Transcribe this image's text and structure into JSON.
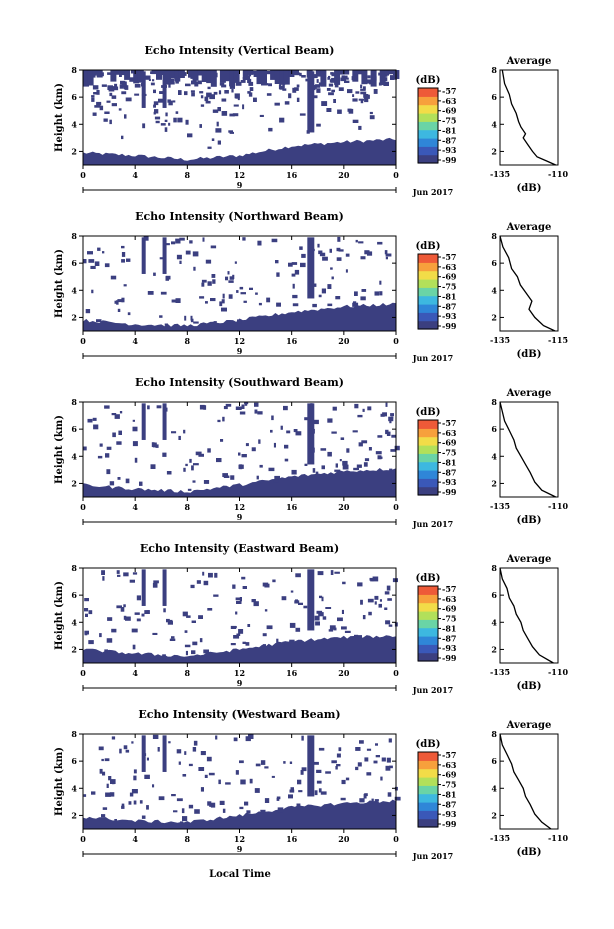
{
  "figure": {
    "xlabel": "Local Time",
    "date_label": "Jun 2017",
    "day_label": "9",
    "colorbar_unit": "(dB)",
    "colorbar_ticks": [
      "-57",
      "-63",
      "-69",
      "-75",
      "-81",
      "-87",
      "-93",
      "-99"
    ],
    "avg_title": "Average",
    "avg_xlabel": "(dB)"
  },
  "colors": {
    "noise_fill": "#3b3f80",
    "colorbar": [
      "#3b3f80",
      "#3a58b8",
      "#2f86d8",
      "#3db8e0",
      "#6ad4a6",
      "#b2e05a",
      "#f2dc48",
      "#f7a03c",
      "#ee5a38"
    ]
  },
  "chart_data": [
    {
      "type": "heatmap",
      "title": "Echo Intensity (Vertical Beam)",
      "ylabel": "Height (km)",
      "x_ticks": [
        "0",
        "4",
        "8",
        "12",
        "16",
        "20",
        "0"
      ],
      "y_ticks": [
        "2",
        "4",
        "6",
        "8"
      ],
      "xlim": [
        0,
        24
      ],
      "ylim": [
        1,
        8
      ],
      "noise_floor_km": [
        [
          0,
          1.9
        ],
        [
          4,
          1.7
        ],
        [
          8,
          1.4
        ],
        [
          12,
          1.7
        ],
        [
          16,
          2.4
        ],
        [
          20,
          2.7
        ],
        [
          24,
          2.9
        ]
      ],
      "avg_type": "line",
      "avg_xlim": [
        -135,
        -110
      ],
      "avg_x_ticks": [
        "-135",
        "-110"
      ],
      "avg_y_ticks": [
        "2",
        "4",
        "6",
        "8"
      ],
      "avg_profile": [
        [
          1.0,
          -111
        ],
        [
          1.3,
          -115
        ],
        [
          1.6,
          -119
        ],
        [
          2.0,
          -121
        ],
        [
          2.5,
          -123
        ],
        [
          3.0,
          -125
        ],
        [
          3.3,
          -124
        ],
        [
          3.8,
          -126
        ],
        [
          4.2,
          -127
        ],
        [
          4.8,
          -128
        ],
        [
          5.5,
          -130
        ],
        [
          6.2,
          -131
        ],
        [
          7.0,
          -133
        ],
        [
          8.0,
          -134
        ]
      ]
    },
    {
      "type": "heatmap",
      "title": "Echo Intensity (Northward Beam)",
      "ylabel": "Height (km)",
      "x_ticks": [
        "0",
        "4",
        "8",
        "12",
        "16",
        "20",
        "0"
      ],
      "y_ticks": [
        "2",
        "4",
        "6",
        "8"
      ],
      "xlim": [
        0,
        24
      ],
      "ylim": [
        1,
        8
      ],
      "noise_floor_km": [
        [
          0,
          1.8
        ],
        [
          4,
          1.5
        ],
        [
          8,
          1.4
        ],
        [
          12,
          1.8
        ],
        [
          16,
          2.4
        ],
        [
          20,
          2.8
        ],
        [
          24,
          3.0
        ]
      ],
      "avg_type": "line",
      "avg_xlim": [
        -135,
        -115
      ],
      "avg_x_ticks": [
        "-135",
        "-115"
      ],
      "avg_y_ticks": [
        "2",
        "4",
        "6",
        "8"
      ],
      "avg_profile": [
        [
          1.0,
          -116
        ],
        [
          1.4,
          -120
        ],
        [
          2.0,
          -123
        ],
        [
          2.6,
          -125
        ],
        [
          3.2,
          -124
        ],
        [
          3.8,
          -126
        ],
        [
          4.4,
          -128
        ],
        [
          5.0,
          -129
        ],
        [
          5.6,
          -131
        ],
        [
          6.4,
          -132
        ],
        [
          7.2,
          -134
        ],
        [
          8.0,
          -135
        ]
      ]
    },
    {
      "type": "heatmap",
      "title": "Echo Intensity (Southward Beam)",
      "ylabel": "Height (km)",
      "x_ticks": [
        "0",
        "4",
        "8",
        "12",
        "16",
        "20",
        "0"
      ],
      "y_ticks": [
        "2",
        "4",
        "6",
        "8"
      ],
      "xlim": [
        0,
        24
      ],
      "ylim": [
        1,
        8
      ],
      "noise_floor_km": [
        [
          0,
          1.9
        ],
        [
          4,
          1.6
        ],
        [
          8,
          1.4
        ],
        [
          12,
          1.9
        ],
        [
          16,
          2.5
        ],
        [
          20,
          2.9
        ],
        [
          24,
          3.1
        ]
      ],
      "avg_type": "line",
      "avg_xlim": [
        -135,
        -110
      ],
      "avg_x_ticks": [
        "-135",
        "-110"
      ],
      "avg_y_ticks": [
        "2",
        "4",
        "6",
        "8"
      ],
      "avg_profile": [
        [
          1.0,
          -111
        ],
        [
          1.5,
          -117
        ],
        [
          2.1,
          -120
        ],
        [
          2.8,
          -122
        ],
        [
          3.4,
          -124
        ],
        [
          4.0,
          -126
        ],
        [
          4.6,
          -128
        ],
        [
          5.2,
          -129
        ],
        [
          5.9,
          -131
        ],
        [
          6.6,
          -133
        ],
        [
          7.3,
          -134
        ],
        [
          8.0,
          -135
        ]
      ]
    },
    {
      "type": "heatmap",
      "title": "Echo Intensity (Eastward Beam)",
      "ylabel": "Height (km)",
      "x_ticks": [
        "0",
        "4",
        "8",
        "12",
        "16",
        "20",
        "0"
      ],
      "y_ticks": [
        "2",
        "4",
        "6",
        "8"
      ],
      "xlim": [
        0,
        24
      ],
      "ylim": [
        1,
        8
      ],
      "noise_floor_km": [
        [
          0,
          2.0
        ],
        [
          4,
          1.7
        ],
        [
          8,
          1.5
        ],
        [
          12,
          2.0
        ],
        [
          16,
          2.6
        ],
        [
          20,
          2.9
        ],
        [
          24,
          3.0
        ]
      ],
      "avg_type": "line",
      "avg_xlim": [
        -135,
        -110
      ],
      "avg_x_ticks": [
        "-135",
        "-110"
      ],
      "avg_y_ticks": [
        "2",
        "4",
        "6",
        "8"
      ],
      "avg_profile": [
        [
          1.0,
          -112
        ],
        [
          1.6,
          -118
        ],
        [
          2.2,
          -121
        ],
        [
          2.8,
          -123
        ],
        [
          3.4,
          -125
        ],
        [
          4.0,
          -126
        ],
        [
          4.6,
          -128
        ],
        [
          5.2,
          -129
        ],
        [
          5.8,
          -131
        ],
        [
          6.5,
          -132
        ],
        [
          7.2,
          -134
        ],
        [
          8.0,
          -135
        ]
      ]
    },
    {
      "type": "heatmap",
      "title": "Echo Intensity (Westward Beam)",
      "ylabel": "Height (km)",
      "x_ticks": [
        "0",
        "4",
        "8",
        "12",
        "16",
        "20",
        "0"
      ],
      "y_ticks": [
        "2",
        "4",
        "6",
        "8"
      ],
      "xlim": [
        0,
        24
      ],
      "ylim": [
        1,
        8
      ],
      "noise_floor_km": [
        [
          0,
          1.9
        ],
        [
          4,
          1.6
        ],
        [
          8,
          1.5
        ],
        [
          12,
          2.0
        ],
        [
          16,
          2.6
        ],
        [
          20,
          2.9
        ],
        [
          24,
          3.1
        ]
      ],
      "avg_type": "line",
      "avg_xlim": [
        -135,
        -110
      ],
      "avg_x_ticks": [
        "-135",
        "-110"
      ],
      "avg_y_ticks": [
        "2",
        "4",
        "6",
        "8"
      ],
      "avg_profile": [
        [
          1.0,
          -113
        ],
        [
          1.5,
          -117
        ],
        [
          2.1,
          -120
        ],
        [
          2.8,
          -122
        ],
        [
          3.4,
          -124
        ],
        [
          4.0,
          -125
        ],
        [
          4.6,
          -127
        ],
        [
          5.2,
          -129
        ],
        [
          5.8,
          -130
        ],
        [
          6.5,
          -132
        ],
        [
          7.2,
          -134
        ],
        [
          8.0,
          -135
        ]
      ]
    }
  ]
}
